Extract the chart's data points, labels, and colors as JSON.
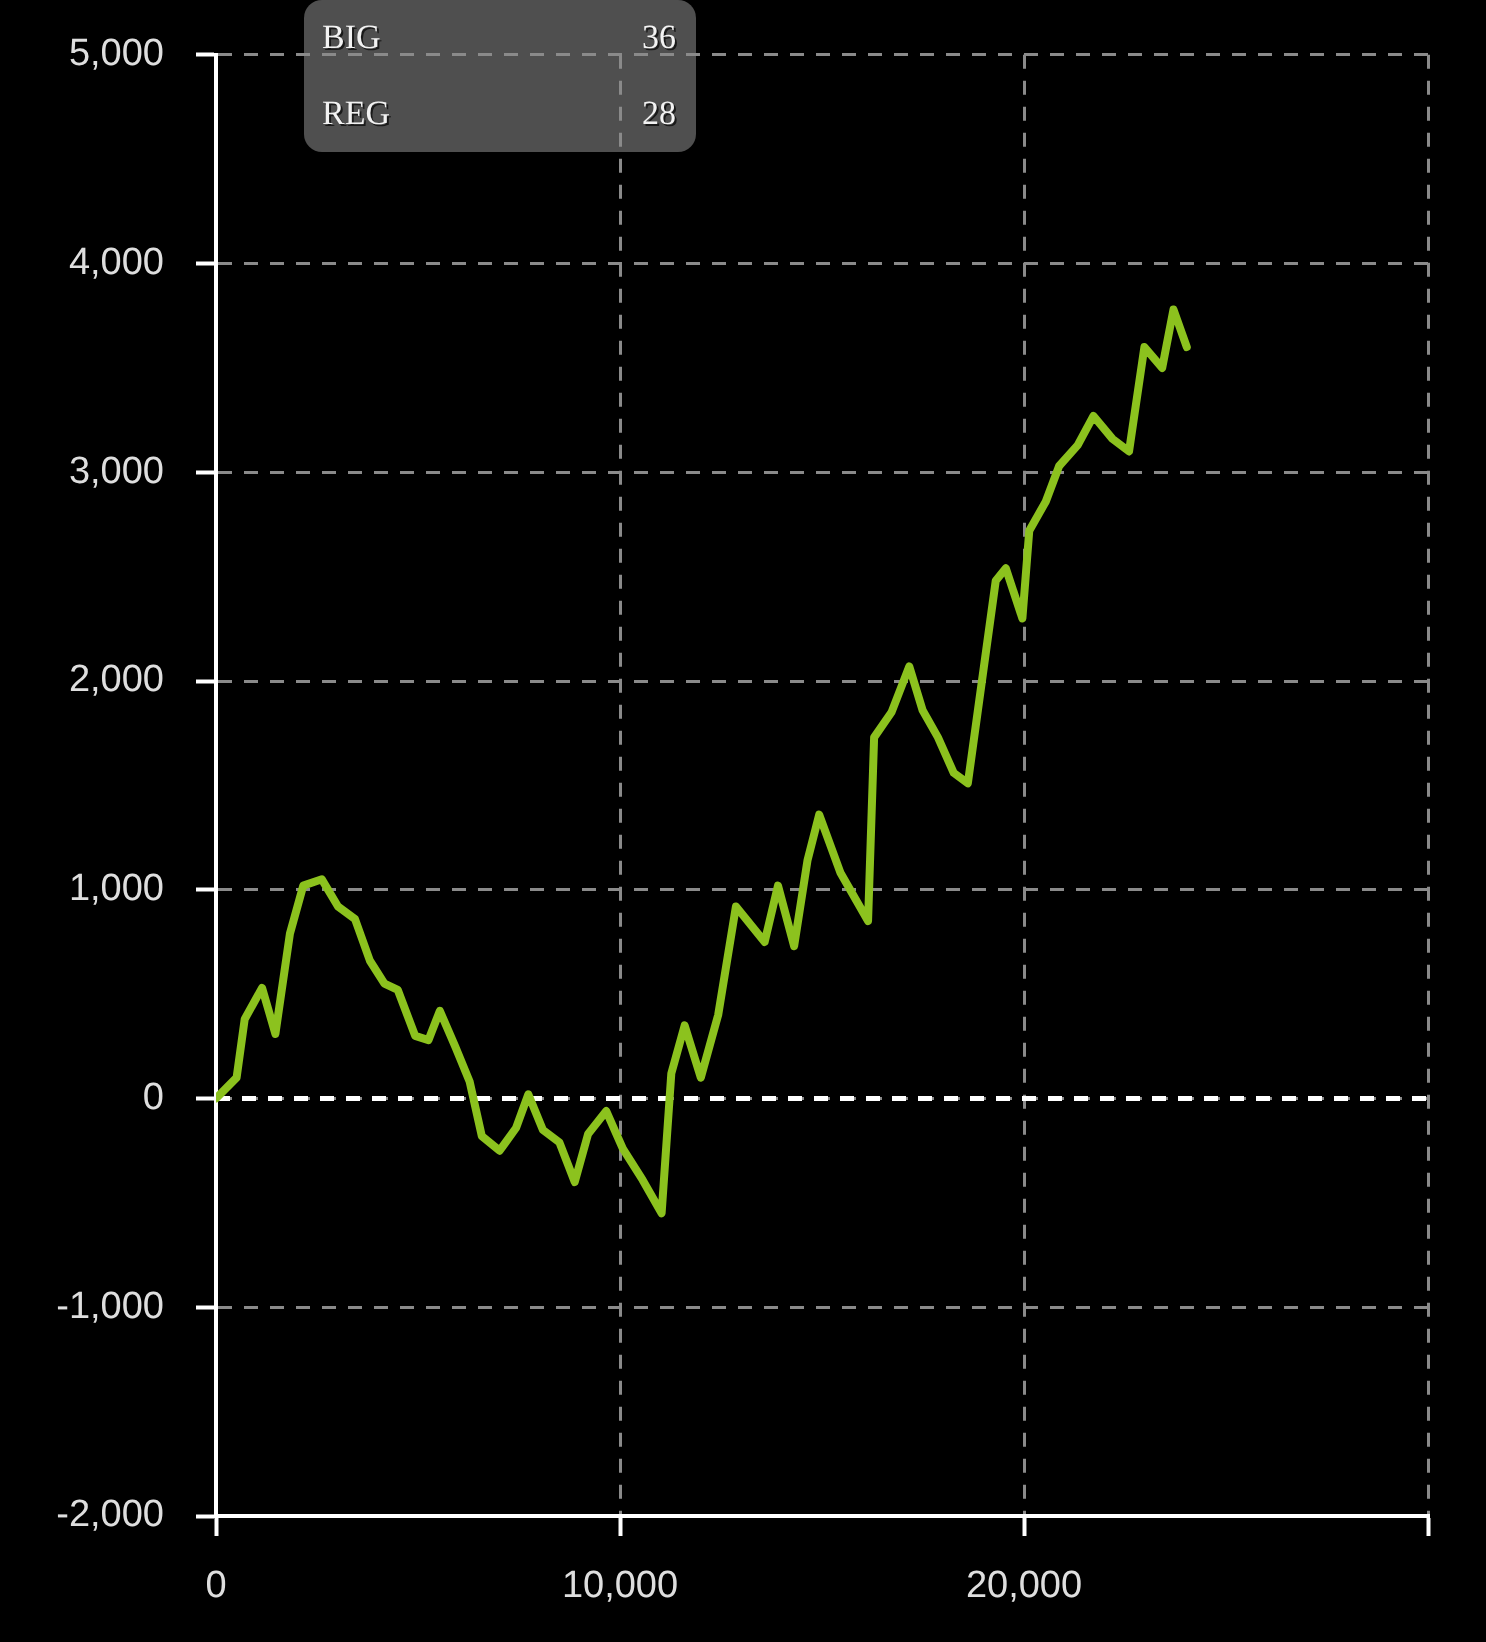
{
  "chart_data": {
    "type": "line",
    "x": [
      0,
      510,
      710,
      1140,
      1470,
      1830,
      2160,
      2620,
      3020,
      3440,
      3810,
      4170,
      4500,
      4930,
      5260,
      5540,
      5920,
      6280,
      6580,
      7020,
      7430,
      7730,
      8090,
      8500,
      8880,
      9210,
      9660,
      10070,
      10560,
      11030,
      11270,
      11600,
      12000,
      12430,
      12870,
      13580,
      13910,
      14310,
      14640,
      14930,
      15460,
      16140,
      16290,
      16720,
      17160,
      17490,
      17870,
      18260,
      18610,
      19300,
      19550,
      19960,
      20130,
      20540,
      20870,
      21330,
      21720,
      22190,
      22600,
      22980,
      23420,
      23700,
      24030
    ],
    "series": [
      {
        "color": "#8cc21e",
        "values": [
          0,
          100,
          380,
          530,
          310,
          790,
          1020,
          1050,
          920,
          860,
          660,
          550,
          520,
          300,
          280,
          420,
          250,
          80,
          -180,
          -250,
          -140,
          20,
          -150,
          -210,
          -400,
          -170,
          -60,
          -240,
          -390,
          -550,
          120,
          350,
          100,
          400,
          920,
          750,
          1020,
          730,
          1140,
          1360,
          1080,
          850,
          1730,
          1850,
          2070,
          1860,
          1730,
          1560,
          1510,
          2480,
          2540,
          2300,
          2720,
          2860,
          3030,
          3130,
          3270,
          3160,
          3100,
          3600,
          3500,
          3780,
          3600
        ]
      }
    ],
    "xlim": [
      0,
      30000
    ],
    "xticks": [
      0,
      {
        "value": 10000,
        "label": "10,000"
      },
      {
        "value": 20000,
        "label": "20,000"
      },
      {
        "value": 30000,
        "label": null
      }
    ],
    "ylim": [
      -2000,
      5000
    ],
    "yticks": [
      {
        "value": -2000,
        "label": "-2,000"
      },
      {
        "value": -1000,
        "label": "-1,000"
      },
      0,
      {
        "value": 1000,
        "label": "1,000"
      },
      {
        "value": 2000,
        "label": "2,000"
      },
      {
        "value": 3000,
        "label": "3,000"
      },
      {
        "value": 4000,
        "label": "4,000"
      },
      {
        "value": 5000,
        "label": "5,000"
      }
    ],
    "grid": true,
    "marker": "none",
    "line_style": "solid",
    "ref_lines": [
      {
        "axis": "y",
        "value": 0,
        "color": "#ffffff",
        "line_style": "dashed"
      }
    ],
    "annotations": [
      "BIG",
      "36",
      "REG",
      "28"
    ]
  }
}
